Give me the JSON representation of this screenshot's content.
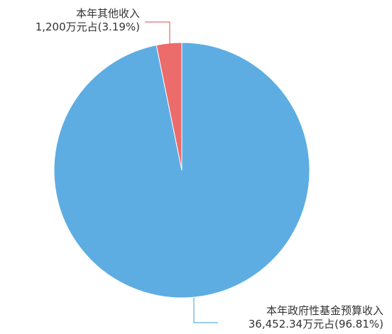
{
  "chart_data": {
    "type": "pie",
    "slices": [
      {
        "name": "本年政府性基金预算收入",
        "value": 36452.34,
        "percent": 96.81,
        "value_label": "36,452.34万元占(96.81%)",
        "color": "#5DADE2"
      },
      {
        "name": "本年其他收入",
        "value": 1200,
        "percent": 3.19,
        "value_label": "1,200万元占(3.19%)",
        "color": "#EC6B6B"
      }
    ],
    "legend": "none"
  }
}
